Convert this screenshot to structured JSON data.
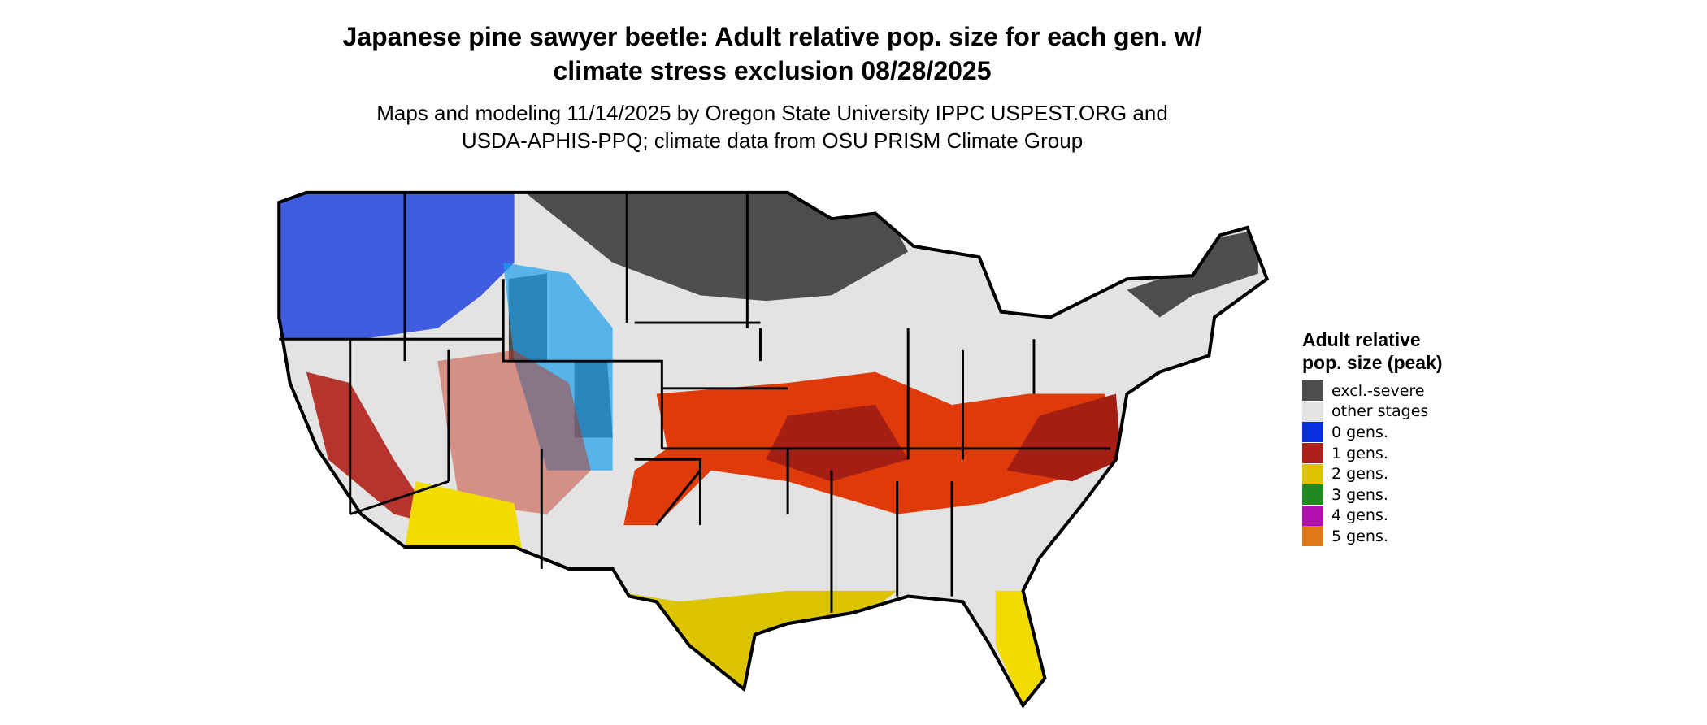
{
  "title": "Japanese pine sawyer beetle: Adult relative pop. size for each gen. w/ climate stress exclusion 08/28/2025",
  "subtitle": "Maps and modeling 11/14/2025 by Oregon State University IPPC USPEST.ORG and USDA-APHIS-PPQ; climate data from OSU PRISM Climate Group",
  "legend": {
    "title": "Adult relative pop. size (peak)",
    "items": [
      {
        "label": "excl.-severe",
        "color": "#4d4d4d"
      },
      {
        "label": "other stages",
        "color": "#e3e3e3"
      },
      {
        "label": "0 gens.",
        "color": "#0a2fe0"
      },
      {
        "label": "1 gens.",
        "color": "#b0201a"
      },
      {
        "label": "2 gens.",
        "color": "#dcc400"
      },
      {
        "label": "3 gens.",
        "color": "#1f8a1f"
      },
      {
        "label": "4 gens.",
        "color": "#b010b0"
      },
      {
        "label": "5 gens.",
        "color": "#e07818"
      }
    ]
  }
}
